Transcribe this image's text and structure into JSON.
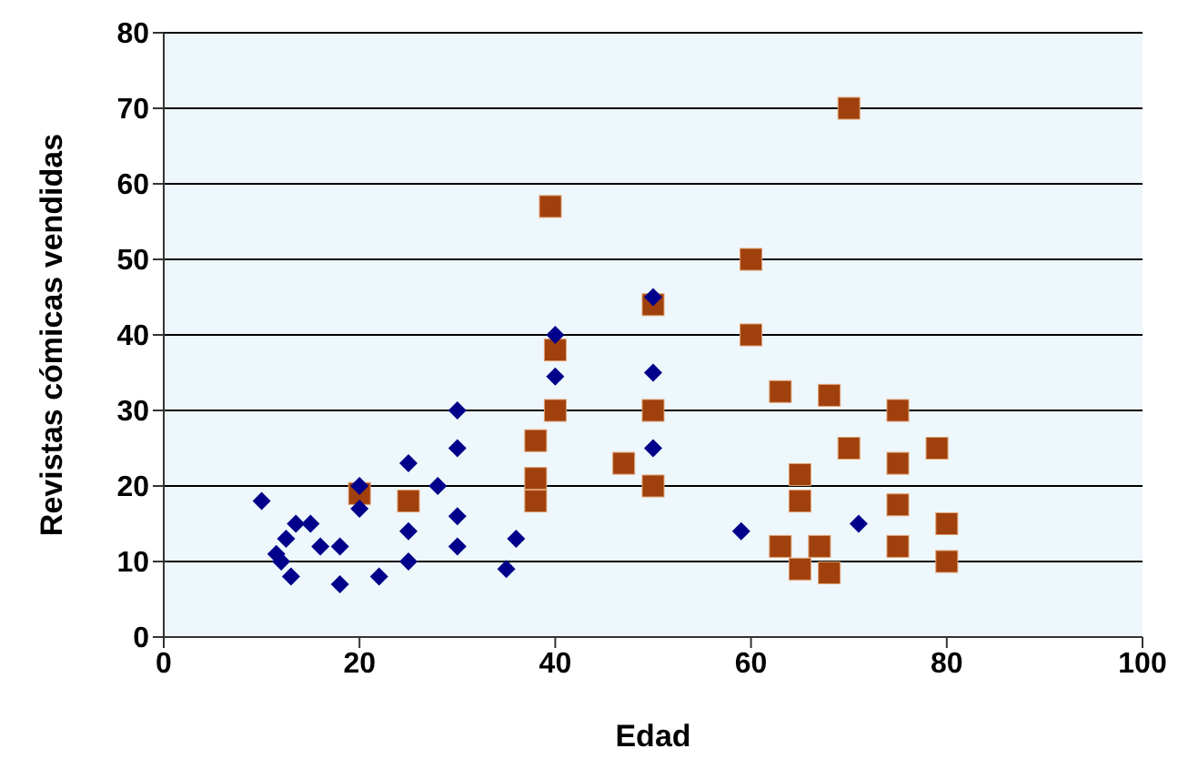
{
  "chart_data": {
    "type": "scatter",
    "xlabel": "Edad",
    "ylabel": "Revistas cómicas vendidas",
    "xlim": [
      0,
      100
    ],
    "xticks": [
      0,
      20,
      40,
      60,
      80,
      100
    ],
    "ylim": [
      0,
      80
    ],
    "yticks": [
      0,
      10,
      20,
      30,
      40,
      50,
      60,
      70,
      80
    ],
    "grid": "y",
    "legend": false,
    "series": [
      {
        "color": "#00008b",
        "marker": "diamond",
        "x": [
          10,
          11.5,
          12,
          12.5,
          13,
          13.5,
          15,
          16,
          18,
          18,
          20,
          20,
          22,
          25,
          25,
          25,
          28,
          30,
          30,
          30,
          30,
          35,
          36,
          40,
          40,
          50,
          50,
          50,
          59,
          71
        ],
        "values": [
          18,
          11,
          10,
          13,
          8,
          15,
          15,
          12,
          12,
          7,
          17,
          20,
          8,
          23,
          10,
          14,
          20,
          30,
          25,
          16,
          12,
          9,
          13,
          40,
          34.5,
          45,
          35,
          25,
          14,
          15
        ]
      },
      {
        "color": "#a0400c",
        "marker": "square",
        "x": [
          20,
          25,
          38,
          38,
          38,
          39.5,
          40,
          40,
          47,
          50,
          50,
          50,
          60,
          60,
          63,
          63,
          65,
          65,
          65,
          67,
          68,
          68,
          70,
          70,
          75,
          75,
          75,
          75,
          79,
          80,
          80
        ],
        "values": [
          19,
          18,
          26,
          21,
          18,
          57,
          38,
          30,
          23,
          44,
          30,
          20,
          50,
          40,
          32.5,
          12,
          21.5,
          18,
          9,
          12,
          32,
          8.5,
          25,
          70,
          30,
          23,
          17.5,
          12,
          25,
          15,
          10
        ]
      }
    ]
  }
}
